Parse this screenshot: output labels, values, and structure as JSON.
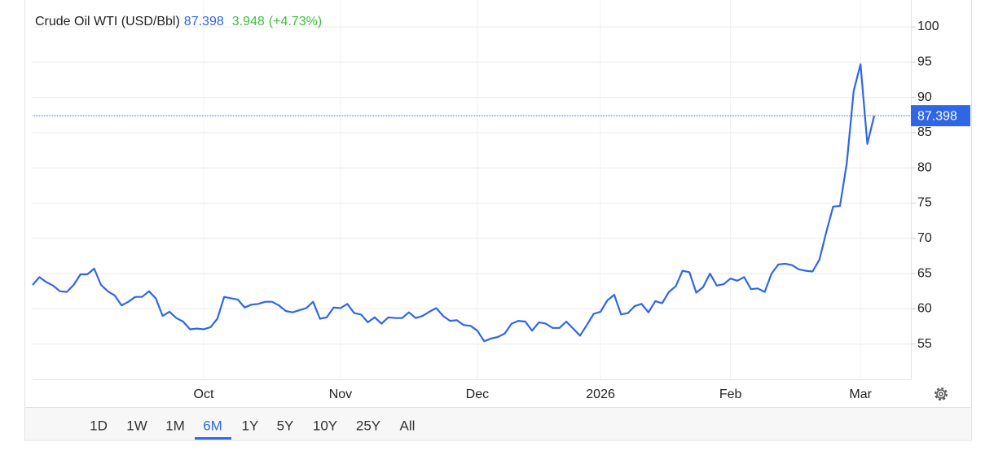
{
  "chart_data": {
    "type": "line",
    "title": "Crude Oil WTI (USD/Bbl)",
    "last_price": 87.398,
    "change": 3.948,
    "change_label": "(+4.73%)",
    "color": "#2f66e8",
    "price_color": "#2f66e8",
    "change_color": "#3cbf3c",
    "categories": [
      null,
      null,
      null,
      null,
      null,
      null,
      null,
      null,
      null,
      null,
      null,
      null,
      null,
      null,
      null,
      null,
      null,
      null,
      null,
      null,
      null,
      null,
      null,
      null,
      null,
      "Oct",
      null,
      null,
      null,
      null,
      null,
      null,
      null,
      null,
      null,
      null,
      null,
      null,
      null,
      null,
      null,
      null,
      null,
      null,
      null,
      "Nov",
      null,
      null,
      null,
      null,
      null,
      null,
      null,
      null,
      null,
      null,
      null,
      null,
      null,
      null,
      null,
      null,
      null,
      null,
      null,
      "Dec",
      null,
      null,
      null,
      null,
      null,
      null,
      null,
      null,
      null,
      null,
      null,
      null,
      null,
      null,
      null,
      null,
      null,
      "2026",
      null,
      null,
      null,
      null,
      null,
      null,
      null,
      null,
      null,
      null,
      null,
      null,
      null,
      null,
      null,
      null,
      null,
      null,
      "Feb",
      null,
      null,
      null,
      null,
      null,
      null,
      null,
      null,
      null,
      null,
      null,
      null,
      null,
      null,
      null,
      null,
      null,
      null,
      "Mar",
      null,
      null
    ],
    "values": [
      63.4,
      64.5,
      63.8,
      63.3,
      62.5,
      62.4,
      63.4,
      64.9,
      64.9,
      65.7,
      63.4,
      62.5,
      61.9,
      60.5,
      61.0,
      61.7,
      61.7,
      62.5,
      61.5,
      59.0,
      59.6,
      58.7,
      58.2,
      57.1,
      57.2,
      57.1,
      57.4,
      58.6,
      61.7,
      61.5,
      61.3,
      60.2,
      60.6,
      60.7,
      61.0,
      61.0,
      60.5,
      59.7,
      59.5,
      59.8,
      60.1,
      61.0,
      58.6,
      58.8,
      60.2,
      60.1,
      60.7,
      59.4,
      59.2,
      58.1,
      58.8,
      57.9,
      58.8,
      58.7,
      58.7,
      59.5,
      58.7,
      59.0,
      59.6,
      60.1,
      59.0,
      58.3,
      58.4,
      57.7,
      57.6,
      56.9,
      55.4,
      55.8,
      56.0,
      56.5,
      57.9,
      58.3,
      58.2,
      56.9,
      58.1,
      57.9,
      57.3,
      57.3,
      58.2,
      57.2,
      56.2,
      57.7,
      59.3,
      59.6,
      61.2,
      62.0,
      59.2,
      59.4,
      60.4,
      60.7,
      59.5,
      61.1,
      60.8,
      62.4,
      63.2,
      65.4,
      65.2,
      62.3,
      63.1,
      65.0,
      63.3,
      63.5,
      64.3,
      64.0,
      64.5,
      62.8,
      62.9,
      62.4,
      65.0,
      66.3,
      66.4,
      66.2,
      65.6,
      65.4,
      65.3,
      67.0,
      70.9,
      74.5,
      74.6,
      80.7,
      90.9,
      94.7,
      83.4,
      87.398
    ],
    "ylim": [
      50,
      100
    ],
    "yticks": [
      55,
      60,
      65,
      70,
      75,
      80,
      85,
      90,
      95,
      100
    ],
    "grid": true
  },
  "range_buttons": [
    "1D",
    "1W",
    "1M",
    "6M",
    "1Y",
    "5Y",
    "10Y",
    "25Y",
    "All"
  ]
}
